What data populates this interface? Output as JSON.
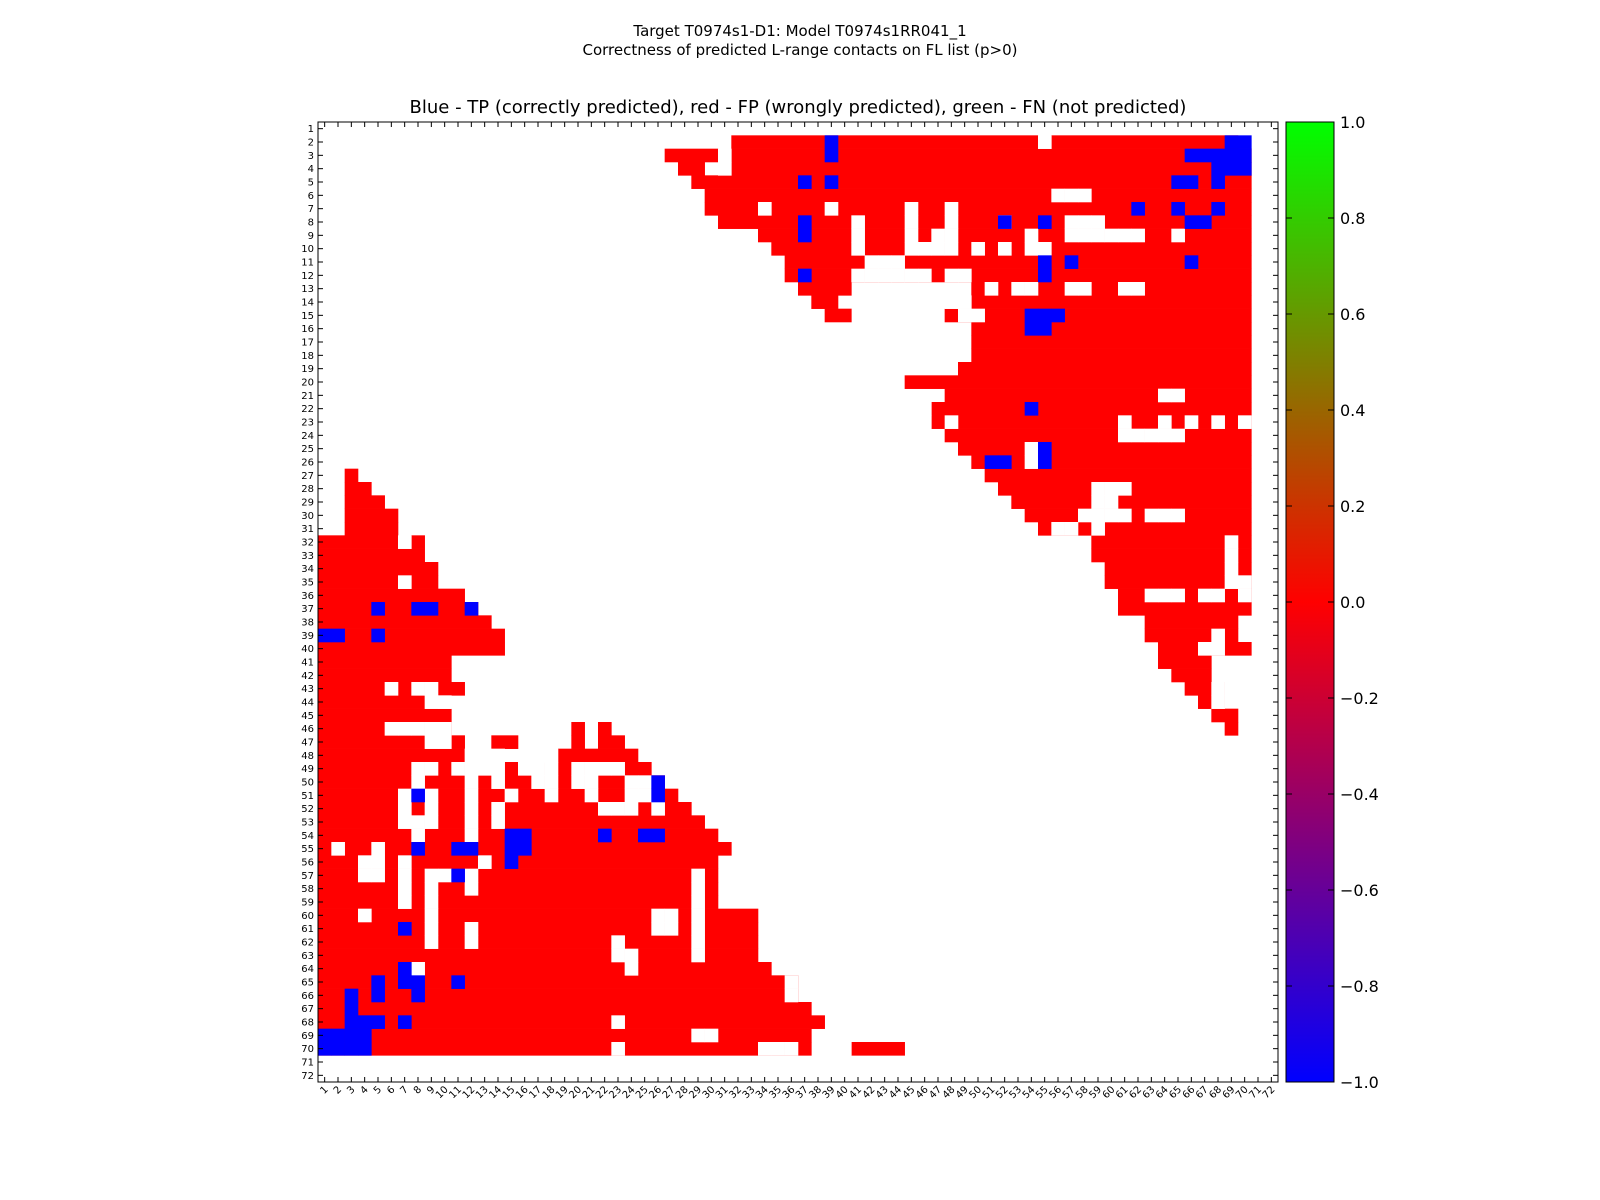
{
  "header": {
    "title_line1": "Target T0974s1-D1: Model T0974s1RR041_1",
    "title_line2": "Correctness of predicted L-range contacts on FL list (p>0)"
  },
  "colors": {
    "tp": "#0000ff",
    "fp": "#ff0000",
    "fn": "#00ff00",
    "background": "#ffffff"
  },
  "chart_data": {
    "type": "heatmap",
    "title": "Blue - TP (correctly predicted), red - FP (wrongly predicted), green - FN (not predicted)",
    "n": 72,
    "x_ticks": [
      1,
      2,
      3,
      4,
      5,
      6,
      7,
      8,
      9,
      10,
      11,
      12,
      13,
      14,
      15,
      16,
      17,
      18,
      19,
      20,
      21,
      22,
      23,
      24,
      25,
      26,
      27,
      28,
      29,
      30,
      31,
      32,
      33,
      34,
      35,
      36,
      37,
      38,
      39,
      40,
      41,
      42,
      43,
      44,
      45,
      46,
      47,
      48,
      49,
      50,
      51,
      52,
      53,
      54,
      55,
      56,
      57,
      58,
      59,
      60,
      61,
      62,
      63,
      64,
      65,
      66,
      67,
      68,
      69,
      70,
      71,
      72
    ],
    "y_ticks": [
      1,
      2,
      3,
      4,
      5,
      6,
      7,
      8,
      9,
      10,
      11,
      12,
      13,
      14,
      15,
      16,
      17,
      18,
      19,
      20,
      21,
      22,
      23,
      24,
      25,
      26,
      27,
      28,
      29,
      30,
      31,
      32,
      33,
      34,
      35,
      36,
      37,
      38,
      39,
      40,
      41,
      42,
      43,
      44,
      45,
      46,
      47,
      48,
      49,
      50,
      51,
      52,
      53,
      54,
      55,
      56,
      57,
      58,
      59,
      60,
      61,
      62,
      63,
      64,
      65,
      66,
      67,
      68,
      69,
      70,
      71,
      72
    ],
    "colorbar": {
      "min": -1.0,
      "max": 1.0,
      "ticks": [
        "1.0",
        "0.8",
        "0.6",
        "0.4",
        "0.2",
        "0.0",
        "−0.2",
        "−0.4",
        "−0.6",
        "−0.8",
        "−1.0"
      ]
    },
    "upper_fp_rows": [
      [
        2,
        32,
        54
      ],
      [
        2,
        56,
        69
      ],
      [
        3,
        27,
        30
      ],
      [
        3,
        32,
        70
      ],
      [
        4,
        28,
        29
      ],
      [
        4,
        32,
        70
      ],
      [
        5,
        29,
        70
      ],
      [
        6,
        30,
        70
      ],
      [
        7,
        30,
        70
      ],
      [
        8,
        31,
        70
      ],
      [
        9,
        34,
        70
      ],
      [
        10,
        35,
        70
      ],
      [
        11,
        36,
        70
      ],
      [
        12,
        36,
        70
      ],
      [
        13,
        37,
        40
      ],
      [
        13,
        50,
        70
      ],
      [
        14,
        38,
        39
      ],
      [
        14,
        50,
        70
      ],
      [
        15,
        39,
        40
      ],
      [
        15,
        48,
        70
      ],
      [
        16,
        50,
        70
      ],
      [
        17,
        50,
        70
      ],
      [
        18,
        50,
        70
      ],
      [
        19,
        49,
        70
      ],
      [
        20,
        45,
        70
      ],
      [
        21,
        48,
        70
      ],
      [
        22,
        46,
        70
      ],
      [
        23,
        47,
        70
      ],
      [
        24,
        48,
        70
      ],
      [
        25,
        49,
        70
      ],
      [
        26,
        50,
        70
      ],
      [
        27,
        51,
        70
      ],
      [
        28,
        52,
        70
      ],
      [
        29,
        53,
        70
      ],
      [
        30,
        54,
        70
      ],
      [
        31,
        55,
        70
      ],
      [
        32,
        59,
        70
      ],
      [
        33,
        59,
        70
      ],
      [
        34,
        60,
        70
      ],
      [
        35,
        60,
        70
      ],
      [
        36,
        61,
        70
      ],
      [
        37,
        61,
        70
      ],
      [
        38,
        63,
        69
      ],
      [
        39,
        63,
        69
      ],
      [
        40,
        64,
        70
      ],
      [
        41,
        64,
        67
      ],
      [
        42,
        65,
        67
      ],
      [
        43,
        66,
        68
      ],
      [
        44,
        67,
        68
      ],
      [
        45,
        68,
        69
      ],
      [
        46,
        69,
        69
      ]
    ],
    "upper_white": [
      [
        2,
        55
      ],
      [
        3,
        31
      ],
      [
        4,
        31
      ],
      [
        6,
        56
      ],
      [
        6,
        57
      ],
      [
        6,
        58
      ],
      [
        7,
        34
      ],
      [
        7,
        39
      ],
      [
        7,
        45
      ],
      [
        7,
        48
      ],
      [
        8,
        41
      ],
      [
        8,
        45
      ],
      [
        8,
        48
      ],
      [
        8,
        52
      ],
      [
        8,
        57
      ],
      [
        8,
        58
      ],
      [
        8,
        59
      ],
      [
        9,
        41
      ],
      [
        9,
        45
      ],
      [
        9,
        47
      ],
      [
        9,
        48
      ],
      [
        9,
        54
      ],
      [
        9,
        57
      ],
      [
        9,
        58
      ],
      [
        9,
        59
      ],
      [
        9,
        60
      ],
      [
        9,
        61
      ],
      [
        9,
        62
      ],
      [
        9,
        65
      ],
      [
        10,
        41
      ],
      [
        10,
        45
      ],
      [
        10,
        46
      ],
      [
        10,
        47
      ],
      [
        10,
        48
      ],
      [
        10,
        50
      ],
      [
        10,
        52
      ],
      [
        10,
        54
      ],
      [
        10,
        55
      ],
      [
        11,
        42
      ],
      [
        11,
        43
      ],
      [
        11,
        44
      ],
      [
        12,
        41
      ],
      [
        12,
        42
      ],
      [
        12,
        43
      ],
      [
        12,
        44
      ],
      [
        12,
        45
      ],
      [
        12,
        46
      ],
      [
        12,
        48
      ],
      [
        12,
        49
      ],
      [
        13,
        51
      ],
      [
        13,
        53
      ],
      [
        13,
        54
      ],
      [
        13,
        57
      ],
      [
        13,
        58
      ],
      [
        13,
        61
      ],
      [
        13,
        62
      ],
      [
        14,
        48
      ],
      [
        14,
        49
      ],
      [
        15,
        49
      ],
      [
        15,
        50
      ],
      [
        21,
        64
      ],
      [
        21,
        65
      ],
      [
        22,
        46
      ],
      [
        23,
        46
      ],
      [
        23,
        48
      ],
      [
        23,
        61
      ],
      [
        23,
        64
      ],
      [
        23,
        66
      ],
      [
        23,
        68
      ],
      [
        23,
        70
      ],
      [
        24,
        61
      ],
      [
        24,
        62
      ],
      [
        24,
        63
      ],
      [
        24,
        64
      ],
      [
        24,
        65
      ],
      [
        25,
        54
      ],
      [
        26,
        54
      ],
      [
        28,
        59
      ],
      [
        28,
        60
      ],
      [
        28,
        61
      ],
      [
        29,
        59
      ],
      [
        29,
        60
      ],
      [
        30,
        58
      ],
      [
        30,
        59
      ],
      [
        30,
        60
      ],
      [
        30,
        61
      ],
      [
        30,
        63
      ],
      [
        30,
        64
      ],
      [
        30,
        65
      ],
      [
        31,
        56
      ],
      [
        31,
        57
      ],
      [
        31,
        59
      ],
      [
        32,
        69
      ],
      [
        33,
        69
      ],
      [
        34,
        69
      ],
      [
        35,
        69
      ],
      [
        35,
        70
      ],
      [
        36,
        63
      ],
      [
        36,
        64
      ],
      [
        36,
        65
      ],
      [
        36,
        67
      ],
      [
        36,
        68
      ],
      [
        36,
        70
      ],
      [
        39,
        68
      ],
      [
        40,
        67
      ],
      [
        40,
        68
      ],
      [
        43,
        68
      ],
      [
        44,
        68
      ]
    ],
    "upper_tp": [
      [
        2,
        39
      ],
      [
        3,
        39
      ],
      [
        5,
        37
      ],
      [
        5,
        39
      ],
      [
        5,
        65
      ],
      [
        5,
        66
      ],
      [
        5,
        68
      ],
      [
        7,
        62
      ],
      [
        7,
        65
      ],
      [
        7,
        68
      ],
      [
        8,
        37
      ],
      [
        8,
        52
      ],
      [
        8,
        55
      ],
      [
        8,
        66
      ],
      [
        8,
        67
      ],
      [
        9,
        37
      ],
      [
        11,
        55
      ],
      [
        11,
        57
      ],
      [
        11,
        66
      ],
      [
        12,
        37
      ],
      [
        12,
        55
      ],
      [
        15,
        54
      ],
      [
        15,
        55
      ],
      [
        15,
        56
      ],
      [
        16,
        54
      ],
      [
        16,
        55
      ],
      [
        22,
        54
      ],
      [
        25,
        55
      ],
      [
        26,
        51
      ],
      [
        26,
        52
      ],
      [
        26,
        55
      ]
    ],
    "upper_tp_rects": [
      [
        2,
        69,
        70
      ],
      [
        3,
        66,
        70
      ],
      [
        4,
        68,
        70
      ]
    ],
    "lower_fp_rows": [
      [
        27,
        3,
        3
      ],
      [
        28,
        3,
        4
      ],
      [
        29,
        3,
        5
      ],
      [
        30,
        3,
        6
      ],
      [
        31,
        3,
        6
      ],
      [
        32,
        1,
        6
      ],
      [
        32,
        8,
        8
      ],
      [
        33,
        1,
        8
      ],
      [
        34,
        1,
        9
      ],
      [
        35,
        1,
        6
      ],
      [
        35,
        8,
        9
      ],
      [
        36,
        1,
        11
      ],
      [
        37,
        1,
        12
      ],
      [
        38,
        1,
        13
      ],
      [
        39,
        1,
        14
      ],
      [
        40,
        1,
        14
      ],
      [
        41,
        1,
        10
      ],
      [
        42,
        1,
        10
      ],
      [
        43,
        1,
        11
      ],
      [
        44,
        1,
        9
      ],
      [
        45,
        1,
        10
      ],
      [
        46,
        1,
        10
      ],
      [
        46,
        20,
        20
      ],
      [
        46,
        22,
        22
      ],
      [
        47,
        1,
        11
      ],
      [
        47,
        14,
        15
      ],
      [
        47,
        20,
        20
      ],
      [
        47,
        22,
        23
      ],
      [
        48,
        1,
        11
      ],
      [
        48,
        19,
        24
      ],
      [
        49,
        1,
        25
      ],
      [
        50,
        1,
        26
      ],
      [
        51,
        1,
        27
      ],
      [
        52,
        1,
        28
      ],
      [
        53,
        1,
        29
      ],
      [
        54,
        1,
        30
      ],
      [
        55,
        1,
        31
      ],
      [
        56,
        1,
        30
      ],
      [
        57,
        1,
        30
      ],
      [
        58,
        1,
        30
      ],
      [
        59,
        1,
        30
      ],
      [
        60,
        1,
        33
      ],
      [
        61,
        1,
        33
      ],
      [
        62,
        1,
        33
      ],
      [
        63,
        1,
        33
      ],
      [
        64,
        1,
        34
      ],
      [
        65,
        1,
        36
      ],
      [
        66,
        1,
        36
      ],
      [
        67,
        1,
        37
      ],
      [
        68,
        1,
        38
      ],
      [
        69,
        1,
        37
      ],
      [
        70,
        1,
        37
      ],
      [
        70,
        41,
        44
      ]
    ],
    "lower_white": [
      [
        32,
        7
      ],
      [
        35,
        7
      ],
      [
        43,
        6
      ],
      [
        43,
        8
      ],
      [
        43,
        9
      ],
      [
        44,
        9
      ],
      [
        44,
        10
      ],
      [
        46,
        6
      ],
      [
        46,
        7
      ],
      [
        46,
        8
      ],
      [
        46,
        9
      ],
      [
        46,
        10
      ],
      [
        47,
        9
      ],
      [
        47,
        10
      ],
      [
        48,
        12
      ],
      [
        48,
        13
      ],
      [
        48,
        14
      ],
      [
        48,
        17
      ],
      [
        48,
        18
      ],
      [
        49,
        8
      ],
      [
        49,
        9
      ],
      [
        49,
        11
      ],
      [
        49,
        12
      ],
      [
        49,
        13
      ],
      [
        49,
        14
      ],
      [
        49,
        16
      ],
      [
        49,
        17
      ],
      [
        49,
        18
      ],
      [
        49,
        20
      ],
      [
        49,
        21
      ],
      [
        49,
        22
      ],
      [
        49,
        23
      ],
      [
        50,
        8
      ],
      [
        50,
        12
      ],
      [
        50,
        14
      ],
      [
        50,
        17
      ],
      [
        50,
        18
      ],
      [
        50,
        20
      ],
      [
        50,
        21
      ],
      [
        50,
        24
      ],
      [
        50,
        25
      ],
      [
        51,
        7
      ],
      [
        51,
        9
      ],
      [
        51,
        12
      ],
      [
        51,
        15
      ],
      [
        51,
        18
      ],
      [
        51,
        21
      ],
      [
        51,
        24
      ],
      [
        51,
        25
      ],
      [
        52,
        7
      ],
      [
        52,
        9
      ],
      [
        52,
        12
      ],
      [
        52,
        14
      ],
      [
        52,
        22
      ],
      [
        52,
        23
      ],
      [
        52,
        24
      ],
      [
        52,
        26
      ],
      [
        53,
        7
      ],
      [
        53,
        8
      ],
      [
        53,
        9
      ],
      [
        53,
        12
      ],
      [
        53,
        14
      ],
      [
        54,
        8
      ],
      [
        54,
        12
      ],
      [
        55,
        2
      ],
      [
        55,
        5
      ],
      [
        56,
        4
      ],
      [
        56,
        5
      ],
      [
        56,
        7
      ],
      [
        56,
        13
      ],
      [
        57,
        4
      ],
      [
        57,
        5
      ],
      [
        57,
        7
      ],
      [
        57,
        9
      ],
      [
        57,
        10
      ],
      [
        57,
        12
      ],
      [
        57,
        29
      ],
      [
        58,
        7
      ],
      [
        58,
        9
      ],
      [
        58,
        12
      ],
      [
        58,
        29
      ],
      [
        59,
        7
      ],
      [
        59,
        9
      ],
      [
        59,
        29
      ],
      [
        60,
        4
      ],
      [
        60,
        9
      ],
      [
        60,
        26
      ],
      [
        60,
        27
      ],
      [
        60,
        29
      ],
      [
        61,
        9
      ],
      [
        61,
        12
      ],
      [
        61,
        26
      ],
      [
        61,
        27
      ],
      [
        61,
        29
      ],
      [
        62,
        9
      ],
      [
        62,
        12
      ],
      [
        62,
        23
      ],
      [
        62,
        29
      ],
      [
        63,
        23
      ],
      [
        63,
        24
      ],
      [
        63,
        29
      ],
      [
        64,
        8
      ],
      [
        64,
        24
      ],
      [
        65,
        36
      ],
      [
        66,
        36
      ],
      [
        68,
        23
      ],
      [
        69,
        29
      ],
      [
        69,
        30
      ],
      [
        70,
        23
      ],
      [
        70,
        34
      ],
      [
        70,
        35
      ],
      [
        70,
        36
      ],
      [
        70,
        39
      ],
      [
        70,
        40
      ]
    ],
    "lower_tp": [
      [
        37,
        5
      ],
      [
        37,
        8
      ],
      [
        37,
        9
      ],
      [
        37,
        12
      ],
      [
        39,
        1
      ],
      [
        39,
        2
      ],
      [
        39,
        5
      ],
      [
        50,
        26
      ],
      [
        51,
        8
      ],
      [
        51,
        26
      ],
      [
        54,
        15
      ],
      [
        54,
        16
      ],
      [
        54,
        22
      ],
      [
        54,
        25
      ],
      [
        54,
        26
      ],
      [
        55,
        8
      ],
      [
        55,
        11
      ],
      [
        55,
        12
      ],
      [
        55,
        15
      ],
      [
        55,
        16
      ],
      [
        56,
        15
      ],
      [
        57,
        11
      ],
      [
        61,
        7
      ],
      [
        64,
        7
      ],
      [
        65,
        5
      ],
      [
        65,
        7
      ],
      [
        65,
        8
      ],
      [
        65,
        11
      ],
      [
        66,
        3
      ],
      [
        66,
        5
      ],
      [
        66,
        8
      ],
      [
        67,
        3
      ],
      [
        68,
        3
      ],
      [
        68,
        4
      ],
      [
        68,
        5
      ],
      [
        68,
        7
      ],
      [
        69,
        1
      ],
      [
        69,
        2
      ],
      [
        69,
        3
      ],
      [
        69,
        4
      ],
      [
        70,
        1
      ],
      [
        70,
        2
      ],
      [
        70,
        3
      ],
      [
        70,
        4
      ]
    ]
  }
}
